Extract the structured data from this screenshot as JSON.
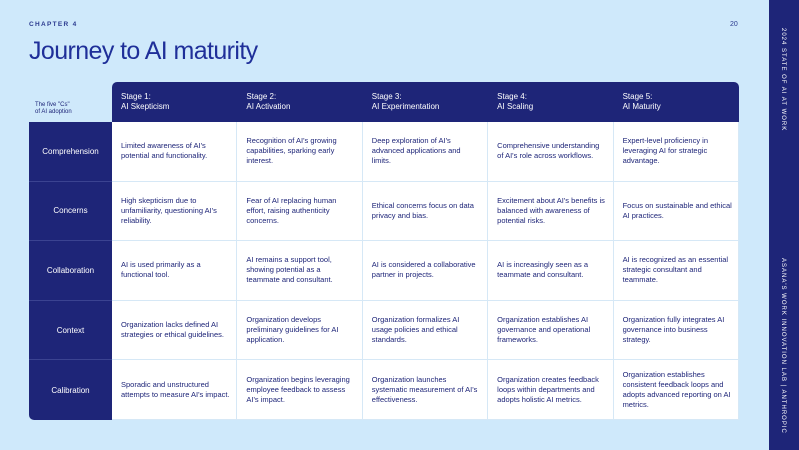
{
  "chapter": "CHAPTER 4",
  "page_number": "20",
  "title": "Journey to AI maturity",
  "side": {
    "top_text": "2024 STATE OF AI AT WORK",
    "bottom_text": "ASANA'S WORK INNOVATION LAB | ANTHROPIC"
  },
  "legend": {
    "line1": "The five \"Cs\"",
    "line2": "of AI adoption"
  },
  "stages": [
    {
      "num": "Stage 1:",
      "name": "AI Skepticism"
    },
    {
      "num": "Stage 2:",
      "name": "AI Activation"
    },
    {
      "num": "Stage 3:",
      "name": "AI Experimentation"
    },
    {
      "num": "Stage 4:",
      "name": "AI Scaling"
    },
    {
      "num": "Stage 5:",
      "name": "AI Maturity"
    }
  ],
  "rows": [
    {
      "label": "Comprehension",
      "cells": [
        "Limited awareness of AI's potential and functionality.",
        "Recognition of AI's growing capabilities, sparking early interest.",
        "Deep exploration of AI's advanced applications and limits.",
        "Comprehensive understanding of AI's role across workflows.",
        "Expert-level proficiency in leveraging AI for strategic advantage."
      ]
    },
    {
      "label": "Concerns",
      "cells": [
        "High skepticism due to unfamiliarity, questioning AI's reliability.",
        "Fear of AI replacing human effort, raising authenticity concerns.",
        "Ethical concerns focus on data privacy and bias.",
        "Excitement about AI's benefits is balanced with awareness of potential risks.",
        "Focus on sustainable and ethical AI practices."
      ]
    },
    {
      "label": "Collaboration",
      "cells": [
        "AI is used primarily as a functional tool.",
        "AI remains a support tool, showing potential as a teammate and consultant.",
        "AI is considered a collaborative partner in projects.",
        "AI is increasingly seen as a teammate and consultant.",
        "AI is recognized as an essential strategic consultant and teammate."
      ]
    },
    {
      "label": "Context",
      "cells": [
        "Organization lacks defined AI strategies or ethical guidelines.",
        "Organization develops preliminary guidelines for AI application.",
        "Organization formalizes AI usage policies and ethical standards.",
        "Organization establishes AI governance and operational frameworks.",
        "Organization fully integrates AI governance into business strategy."
      ]
    },
    {
      "label": "Calibration",
      "cells": [
        "Sporadic and unstructured attempts to measure AI's impact.",
        "Organization begins leveraging employee feedback to assess AI's impact.",
        "Organization launches systematic measurement of AI's effectiveness.",
        "Organization creates feedback loops within departments and adopts holistic AI metrics.",
        "Organization establishes consistent feedback loops and adopts advanced reporting on AI metrics."
      ]
    }
  ]
}
